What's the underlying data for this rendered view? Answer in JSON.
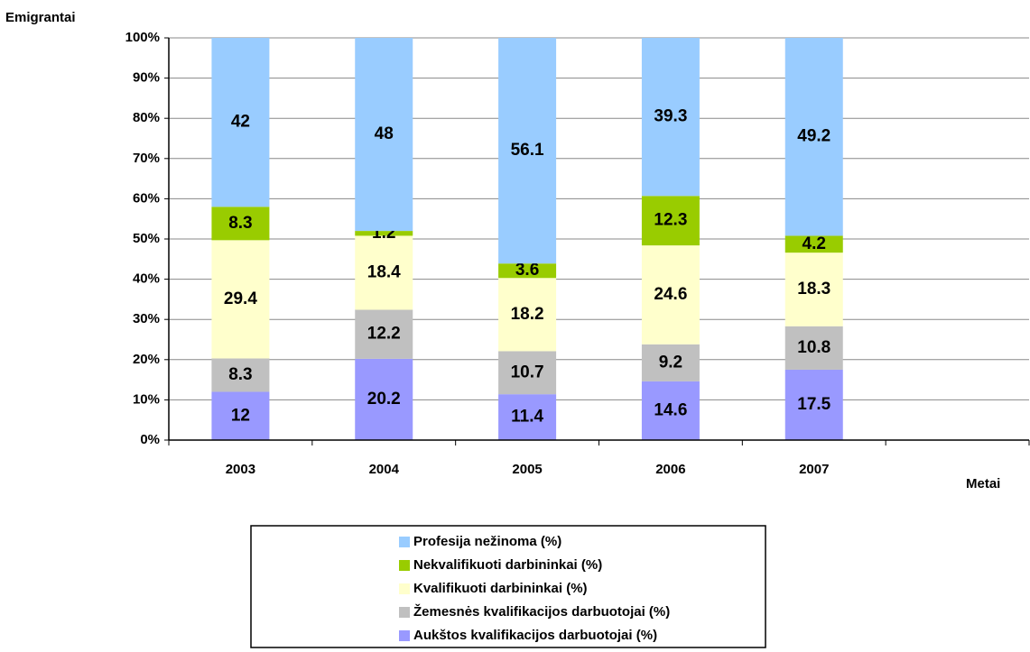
{
  "chart_data": {
    "type": "stacked_bar",
    "y_axis_label": "Emigrantai",
    "x_axis_label": "Metai",
    "categories": [
      "2003",
      "2004",
      "2005",
      "2006",
      "2007",
      null
    ],
    "series": [
      {
        "name": "Aukštos kvalifikacijos darbuotojai (%)",
        "color": "#9999ff",
        "values": [
          12,
          20.2,
          11.4,
          14.6,
          17.5,
          null
        ]
      },
      {
        "name": "Žemesnės kvalifikacijos darbuotojai (%)",
        "color": "#c0c0c0",
        "values": [
          8.3,
          12.2,
          10.7,
          9.2,
          10.8,
          null
        ]
      },
      {
        "name": "Kvalifikuoti darbininkai (%)",
        "color": "#ffffcc",
        "values": [
          29.4,
          18.4,
          18.2,
          24.6,
          18.3,
          null
        ]
      },
      {
        "name": "Nekvalifikuoti darbininkai (%)",
        "color": "#99cc00",
        "values": [
          8.3,
          1.2,
          3.6,
          12.3,
          4.2,
          null
        ]
      },
      {
        "name": "Profesija nežinoma (%)",
        "color": "#99ccff",
        "values": [
          42,
          48,
          56.1,
          39.3,
          49.2,
          null
        ]
      }
    ],
    "ylim": [
      0,
      100
    ],
    "yticks": [
      {
        "value": 0,
        "label": "0%"
      },
      {
        "value": 10,
        "label": "10%"
      },
      {
        "value": 20,
        "label": "20%"
      },
      {
        "value": 30,
        "label": "30%"
      },
      {
        "value": 40,
        "label": "40%"
      },
      {
        "value": 50,
        "label": "50%"
      },
      {
        "value": 60,
        "label": "60%"
      },
      {
        "value": 70,
        "label": "70%"
      },
      {
        "value": 80,
        "label": "80%"
      },
      {
        "value": 90,
        "label": "90%"
      },
      {
        "value": 100,
        "label": "100%"
      }
    ],
    "grid": true,
    "legend": "bottom"
  }
}
